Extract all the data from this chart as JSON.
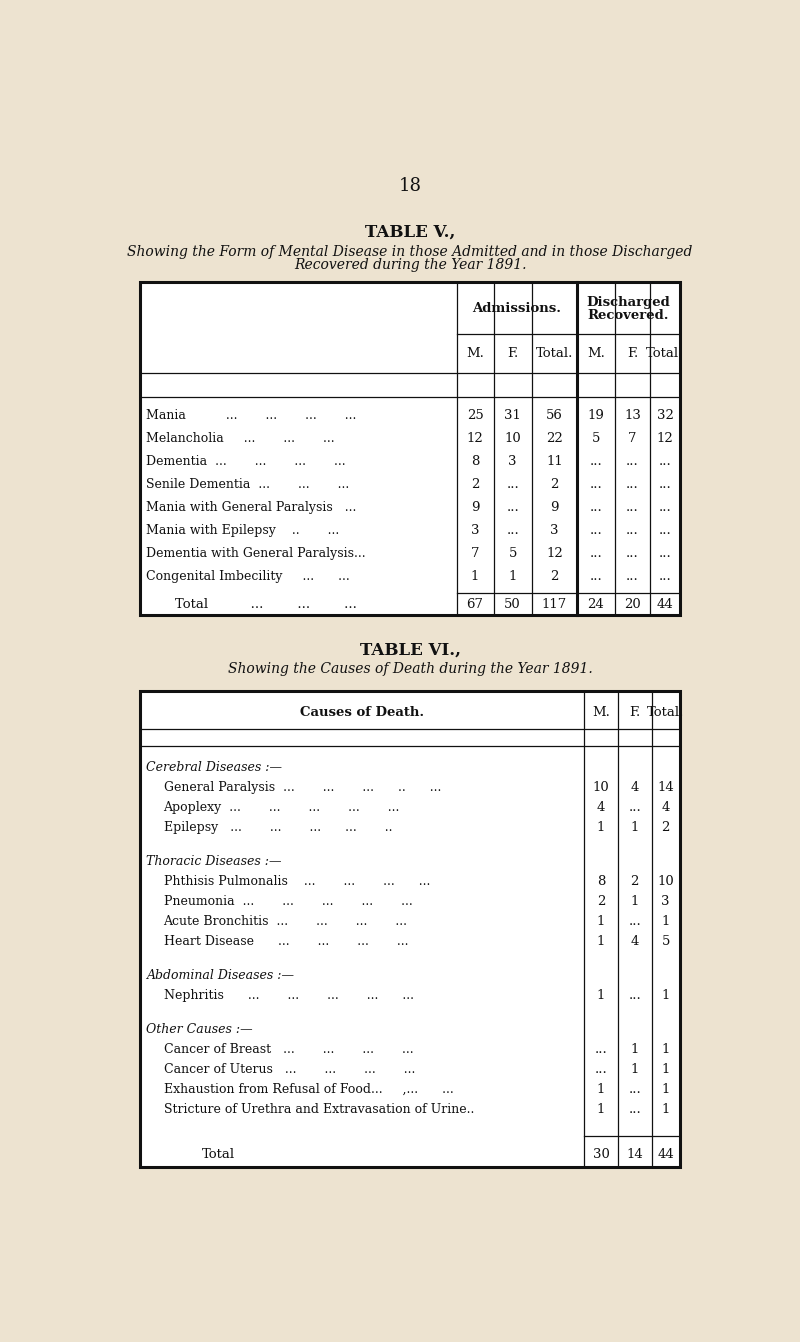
{
  "bg_color": "#ede3d0",
  "page_number": "18",
  "table5": {
    "title": "TABLE V.,",
    "subtitle_line1": "Showing the Form of Mental Disease in those Admitted and in those Discharged",
    "subtitle_line2": "Recovered during the Year 1891.",
    "rows": [
      [
        "Mania          ...       ...       ...       ...",
        "25",
        "31",
        "56",
        "19",
        "13",
        "32"
      ],
      [
        "Melancholia     ...       ...       ...",
        "12",
        "10",
        "22",
        "5",
        "7",
        "12"
      ],
      [
        "Dementia  ...       ...       ...       ...",
        "8",
        "3",
        "11",
        "...",
        "...",
        "..."
      ],
      [
        "Senile Dementia  ...       ...       ...",
        "2",
        "...",
        "2",
        "...",
        "...",
        "..."
      ],
      [
        "Mania with General Paralysis   ...",
        "9",
        "...",
        "9",
        "...",
        "...",
        "..."
      ],
      [
        "Mania with Epilepsy    ..       ...",
        "3",
        "...",
        "3",
        "...",
        "...",
        "..."
      ],
      [
        "Dementia with General Paralysis...",
        "7",
        "5",
        "12",
        "...",
        "...",
        "..."
      ],
      [
        "Congenital Imbecility     ...      ...",
        "1",
        "1",
        "2",
        "...",
        "...",
        "..."
      ]
    ],
    "total_row": [
      "Total          ...        ...        ...",
      "67",
      "50",
      "117",
      "24",
      "20",
      "44"
    ]
  },
  "table6": {
    "title": "TABLE VI.,",
    "subtitle": "Showing the Causes of Death during the Year 1891.",
    "header_label": "Causes of Death.",
    "sections": [
      {
        "section_label": "Cerebral Diseases :—",
        "rows": [
          [
            "General Paralysis  ...       ...       ...      ..      ...",
            "10",
            "4",
            "14"
          ],
          [
            "Apoplexy  ...       ...       ...       ...       ...",
            "4",
            "...",
            "4"
          ],
          [
            "Epilepsy   ...       ...       ...      ...       ..",
            "1",
            "1",
            "2"
          ]
        ]
      },
      {
        "section_label": "Thoracic Diseases :—",
        "rows": [
          [
            "Phthisis Pulmonalis    ...       ...       ...      ...",
            "8",
            "2",
            "10"
          ],
          [
            "Pneumonia  ...       ...       ...       ...       ...",
            "2",
            "1",
            "3"
          ],
          [
            "Acute Bronchitis  ...       ...       ...       ...",
            "1",
            "...",
            "1"
          ],
          [
            "Heart Disease      ...       ...       ...       ...",
            "1",
            "4",
            "5"
          ]
        ]
      },
      {
        "section_label": "Abdominal Diseases :—",
        "rows": [
          [
            "Nephritis      ...       ...       ...       ...      ...",
            "1",
            "...",
            "1"
          ]
        ]
      },
      {
        "section_label": "Other Causes :—",
        "rows": [
          [
            "Cancer of Breast   ...       ...       ...       ...",
            "...",
            "1",
            "1"
          ],
          [
            "Cancer of Uterus   ...       ...       ...       ...",
            "...",
            "1",
            "1"
          ],
          [
            "Exhaustion from Refusal of Food...     ,...      ...",
            "1",
            "...",
            "1"
          ],
          [
            "Stricture of Urethra and Extravasation of Urine..",
            "1",
            "...",
            "1"
          ]
        ]
      }
    ],
    "total_row": [
      "Total      ...       ...       ...       ...       ...",
      "30",
      "14",
      "44"
    ]
  }
}
